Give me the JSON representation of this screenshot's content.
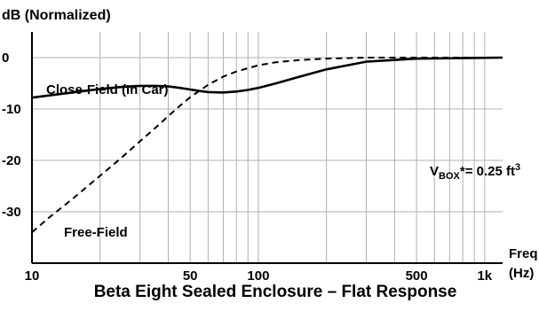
{
  "chart_data": {
    "type": "line",
    "title": "Beta Eight Sealed Enclosure – Flat Response",
    "ylabel": "dB (Normalized)",
    "xlabel": "Frequency (Hz)",
    "xlabel_lines": [
      "Freq",
      "(Hz)"
    ],
    "x_scale": "log",
    "xlim": [
      10,
      1200
    ],
    "ylim": [
      -40,
      5
    ],
    "grid": true,
    "x_ticks": [
      {
        "value": 10,
        "label": "10"
      },
      {
        "value": 50,
        "label": "50"
      },
      {
        "value": 100,
        "label": "100"
      },
      {
        "value": 500,
        "label": "500"
      },
      {
        "value": 1000,
        "label": "1k"
      }
    ],
    "y_ticks": [
      {
        "value": 0,
        "label": "0"
      },
      {
        "value": -10,
        "label": "-10"
      },
      {
        "value": -20,
        "label": "-20"
      },
      {
        "value": -30,
        "label": "-30"
      }
    ],
    "series": [
      {
        "name": "Close-Field (In Car)",
        "style": "solid",
        "x": [
          10,
          15,
          20,
          25,
          30,
          35,
          40,
          45,
          50,
          55,
          60,
          70,
          80,
          90,
          100,
          120,
          150,
          200,
          300,
          500,
          800,
          1200
        ],
        "y": [
          -7.8,
          -6.8,
          -6.1,
          -5.7,
          -5.5,
          -5.5,
          -5.6,
          -5.9,
          -6.2,
          -6.5,
          -6.7,
          -6.8,
          -6.6,
          -6.3,
          -5.9,
          -5.0,
          -3.8,
          -2.3,
          -0.8,
          -0.2,
          -0.1,
          0
        ]
      },
      {
        "name": "Free-Field",
        "style": "dashed",
        "x": [
          10,
          12,
          15,
          20,
          25,
          30,
          35,
          40,
          45,
          50,
          60,
          70,
          80,
          100,
          120,
          150,
          200,
          300,
          500,
          800,
          1200
        ],
        "y": [
          -34,
          -31,
          -27.6,
          -23,
          -19.4,
          -16.3,
          -13.7,
          -11.4,
          -9.4,
          -7.7,
          -5.3,
          -3.7,
          -2.7,
          -1.5,
          -0.9,
          -0.5,
          -0.2,
          0,
          0,
          0,
          0
        ]
      }
    ],
    "annotations": {
      "close_field": "Close-Field (In Car)",
      "free_field": "Free-Field",
      "vbox_main": "V",
      "vbox_sub": "BOX",
      "vbox_rest": "*= 0.25 ft",
      "vbox_sup": "3"
    }
  }
}
